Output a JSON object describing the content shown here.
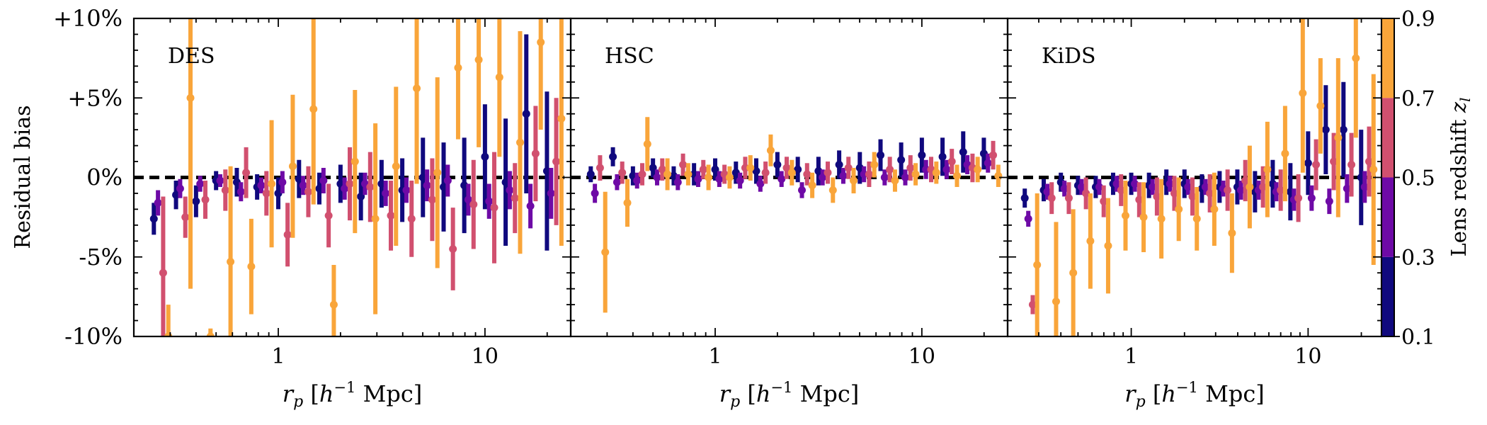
{
  "figure": {
    "ylabel": "Residual bias",
    "xlabel": "r_p [h^-1 Mpc]",
    "colorbar_label": "Lens redshift z_l"
  },
  "colorbar": {
    "ticks": [
      "0.1",
      "0.3",
      "0.5",
      "0.7",
      "0.9"
    ],
    "bins": [
      {
        "range": [
          0.1,
          0.3
        ],
        "color": "#10097e"
      },
      {
        "range": [
          0.3,
          0.5
        ],
        "color": "#6e0aa6"
      },
      {
        "range": [
          0.5,
          0.7
        ],
        "color": "#d1506f"
      },
      {
        "range": [
          0.7,
          0.9
        ],
        "color": "#f9a53a"
      }
    ]
  },
  "chart_data": [
    {
      "type": "scatter",
      "title": "DES",
      "xscale": "log",
      "xlim": [
        0.2,
        26
      ],
      "ylim": [
        -10,
        10
      ],
      "yticks": [
        "-10%",
        "-5%",
        "0%",
        "+5%",
        "+10%"
      ],
      "xticks": [
        "1",
        "10"
      ],
      "reference_line": 0,
      "x": [
        0.25,
        0.32,
        0.4,
        0.5,
        0.63,
        0.79,
        1.0,
        1.26,
        1.58,
        2.0,
        2.51,
        3.16,
        3.98,
        5.01,
        6.31,
        7.94,
        10.0,
        12.59,
        15.85,
        19.95
      ],
      "series": [
        {
          "zbin": "0.1-0.3",
          "y": [
            -2.6,
            -1.1,
            -1.5,
            -0.2,
            -0.3,
            -0.6,
            -1.0,
            -0.1,
            -0.7,
            -0.4,
            -1.2,
            -0.4,
            -0.8,
            0.0,
            -0.6,
            -0.5,
            1.3,
            -0.3,
            4.0,
            0.4
          ],
          "err": [
            1.0,
            0.9,
            1.0,
            0.6,
            0.9,
            0.8,
            1.0,
            1.2,
            1.0,
            1.2,
            1.5,
            1.5,
            2.0,
            2.5,
            2.8,
            3.0,
            3.3,
            4.0,
            5.0,
            5.0
          ]
        },
        {
          "zbin": "0.3-0.5",
          "y": [
            -1.6,
            -0.7,
            -0.4,
            -0.2,
            -0.9,
            -0.5,
            -0.3,
            -0.5,
            -0.2,
            -0.7,
            -0.4,
            -1.0,
            -0.8,
            -0.5,
            -0.2,
            -1.4,
            -1.5,
            -0.8,
            -1.8,
            -1.0
          ],
          "err": [
            0.8,
            0.6,
            0.5,
            0.4,
            0.6,
            0.5,
            0.7,
            0.6,
            0.8,
            0.7,
            0.7,
            0.8,
            0.8,
            1.0,
            1.0,
            1.0,
            1.1,
            1.2,
            1.4,
            1.6
          ],
          "x_offset": 0.02
        },
        {
          "zbin": "0.5-0.7",
          "y": [
            -6.0,
            -2.5,
            -1.4,
            -0.8,
            0.3,
            -1.0,
            -3.6,
            -0.9,
            -2.4,
            -0.4,
            -0.6,
            -2.4,
            -2.6,
            -1.4,
            -4.5,
            -1.7,
            -1.9,
            -1.3,
            1.5,
            1.0
          ],
          "err": [
            4.8,
            1.3,
            1.2,
            1.3,
            1.6,
            1.4,
            2.0,
            1.6,
            2.0,
            2.3,
            2.2,
            2.2,
            2.4,
            2.6,
            2.6,
            2.8,
            3.5,
            2.2,
            3.0,
            4.0
          ],
          "x_offset": 0.045
        },
        {
          "zbin": "0.7-0.9",
          "y": [
            -10.0,
            5.0,
            -10.0,
            -5.3,
            -5.6,
            -0.4,
            0.7,
            4.3,
            -8.0,
            1.0,
            -2.6,
            0.7,
            5.6,
            0.3,
            6.9,
            7.4,
            6.3,
            2.2,
            8.5,
            3.7
          ],
          "err": [
            2.0,
            12.0,
            0.5,
            6.0,
            3.0,
            4.0,
            4.5,
            6.0,
            2.5,
            4.5,
            6.0,
            5.0,
            6.0,
            6.0,
            4.5,
            5.5,
            5.0,
            7.0,
            5.5,
            8.0
          ],
          "x_offset": 0.07
        }
      ]
    },
    {
      "type": "scatter",
      "title": "HSC",
      "xscale": "log",
      "xlim": [
        0.2,
        26
      ],
      "ylim": [
        -10,
        10
      ],
      "yticks": [
        "-10%",
        "-5%",
        "0%",
        "+5%",
        "+10%"
      ],
      "xticks": [
        "1",
        "10"
      ],
      "reference_line": 0,
      "x": [
        0.25,
        0.32,
        0.4,
        0.5,
        0.63,
        0.79,
        1.0,
        1.26,
        1.58,
        2.0,
        2.51,
        3.16,
        3.98,
        5.01,
        6.31,
        7.94,
        10.0,
        12.59,
        15.85,
        19.95
      ],
      "series": [
        {
          "zbin": "0.1-0.3",
          "y": [
            0.2,
            1.3,
            0.1,
            0.6,
            0.1,
            0.2,
            0.5,
            0.3,
            0.4,
            0.8,
            0.5,
            0.4,
            0.8,
            0.6,
            1.4,
            1.1,
            1.4,
            1.3,
            1.6,
            1.5
          ],
          "err": [
            0.5,
            0.6,
            0.6,
            0.6,
            0.6,
            0.7,
            0.7,
            0.7,
            0.8,
            0.8,
            0.8,
            0.9,
            0.9,
            1.0,
            1.0,
            1.1,
            1.1,
            1.2,
            1.3,
            1.0
          ]
        },
        {
          "zbin": "0.3-0.5",
          "y": [
            -1.0,
            -0.3,
            -0.2,
            0.0,
            -0.3,
            -0.1,
            -0.1,
            -0.2,
            -0.4,
            -0.1,
            -0.8,
            0.0,
            0.1,
            0.2,
            0.0,
            0.0,
            0.5,
            0.5,
            0.8,
            0.9
          ],
          "err": [
            0.6,
            0.5,
            0.5,
            0.5,
            0.5,
            0.5,
            0.5,
            0.5,
            0.5,
            0.5,
            0.5,
            0.5,
            0.5,
            0.5,
            0.5,
            0.5,
            0.6,
            0.6,
            0.6,
            0.6
          ],
          "x_offset": 0.02
        },
        {
          "zbin": "0.5-0.7",
          "y": [
            0.6,
            0.3,
            0.2,
            0.5,
            0.8,
            0.5,
            0.2,
            0.6,
            0.3,
            0.6,
            0.2,
            0.3,
            0.6,
            0.2,
            0.5,
            0.6,
            0.5,
            1.0,
            0.6,
            1.4
          ],
          "err": [
            0.8,
            0.7,
            0.7,
            0.7,
            0.7,
            0.6,
            0.6,
            0.7,
            0.7,
            0.7,
            0.7,
            0.7,
            0.7,
            0.8,
            0.8,
            0.8,
            0.8,
            0.8,
            0.9,
            0.9
          ],
          "x_offset": 0.045
        },
        {
          "zbin": "0.7-0.9",
          "y": [
            -4.7,
            -1.6,
            2.1,
            0.2,
            0.2,
            0.0,
            0.0,
            0.6,
            1.7,
            0.3,
            -0.5,
            -0.8,
            -0.2,
            0.8,
            -0.2,
            0.2,
            0.3,
            0.1,
            0.5,
            0.1
          ],
          "err": [
            3.8,
            1.5,
            1.7,
            1.0,
            0.7,
            0.8,
            0.7,
            0.8,
            1.0,
            0.8,
            0.8,
            0.8,
            0.8,
            0.8,
            0.7,
            0.7,
            0.7,
            0.7,
            0.8,
            0.7
          ],
          "x_offset": 0.07
        }
      ]
    },
    {
      "type": "scatter",
      "title": "KiDS",
      "xscale": "log",
      "xlim": [
        0.2,
        26
      ],
      "ylim": [
        -10,
        10
      ],
      "yticks": [
        "-10%",
        "-5%",
        "0%",
        "+5%",
        "+10%"
      ],
      "xticks": [
        "1",
        "10"
      ],
      "reference_line": 0,
      "x": [
        0.25,
        0.32,
        0.4,
        0.5,
        0.63,
        0.79,
        1.0,
        1.26,
        1.58,
        2.0,
        2.51,
        3.16,
        3.98,
        5.01,
        6.31,
        7.94,
        10.0,
        12.59,
        15.85,
        19.95
      ],
      "series": [
        {
          "zbin": "0.1-0.3",
          "y": [
            -1.3,
            -0.8,
            -0.3,
            -0.5,
            -0.6,
            -0.4,
            -0.4,
            -0.5,
            -0.3,
            -0.4,
            -0.7,
            -0.6,
            -0.6,
            -0.9,
            -0.4,
            -0.9,
            0.9,
            3.0,
            3.0,
            0.0
          ],
          "err": [
            0.6,
            0.7,
            0.6,
            0.6,
            0.7,
            0.7,
            0.7,
            0.8,
            0.8,
            0.9,
            0.9,
            1.0,
            1.1,
            1.3,
            1.5,
            1.8,
            2.0,
            2.8,
            3.0,
            3.0
          ]
        },
        {
          "zbin": "0.3-0.5",
          "y": [
            -2.6,
            -0.9,
            -0.7,
            -0.6,
            -0.6,
            -0.4,
            -0.4,
            -0.6,
            -0.4,
            -0.6,
            -0.6,
            -0.7,
            -0.8,
            -0.8,
            -0.9,
            -1.4,
            -1.3,
            -1.5,
            -0.7,
            -0.6
          ],
          "err": [
            0.5,
            0.5,
            0.5,
            0.5,
            0.5,
            0.5,
            0.5,
            0.5,
            0.5,
            0.5,
            0.5,
            0.5,
            0.6,
            0.6,
            0.6,
            0.7,
            0.8,
            0.8,
            0.9,
            1.0
          ],
          "x_offset": 0.02
        },
        {
          "zbin": "0.5-0.7",
          "y": [
            -8.0,
            -1.3,
            -1.3,
            -1.0,
            -1.5,
            -0.8,
            -1.4,
            -1.2,
            -1.0,
            -1.2,
            -1.0,
            -0.8,
            -0.2,
            -0.6,
            -0.8,
            -1.3,
            0.8,
            1.0,
            0.8,
            1.0
          ],
          "err": [
            0.6,
            1.0,
            1.0,
            1.0,
            1.0,
            1.0,
            1.1,
            1.2,
            1.1,
            1.2,
            1.2,
            1.3,
            1.3,
            1.3,
            1.3,
            1.5,
            1.6,
            1.8,
            2.0,
            2.2
          ],
          "x_offset": 0.045
        },
        {
          "zbin": "0.7-0.9",
          "y": [
            -5.5,
            -7.8,
            -6.0,
            -4.0,
            -4.3,
            -2.4,
            -2.5,
            -2.6,
            -2.0,
            -2.6,
            -2.0,
            -3.5,
            -0.6,
            0.5,
            1.5,
            5.3,
            4.5,
            2.5,
            7.5,
            0.5
          ],
          "err": [
            4.5,
            5.0,
            4.0,
            3.0,
            3.0,
            2.2,
            2.2,
            2.5,
            2.0,
            2.0,
            2.3,
            2.5,
            2.6,
            3.0,
            3.0,
            5.0,
            3.0,
            5.0,
            5.0,
            6.0
          ],
          "x_offset": 0.07
        }
      ]
    }
  ]
}
